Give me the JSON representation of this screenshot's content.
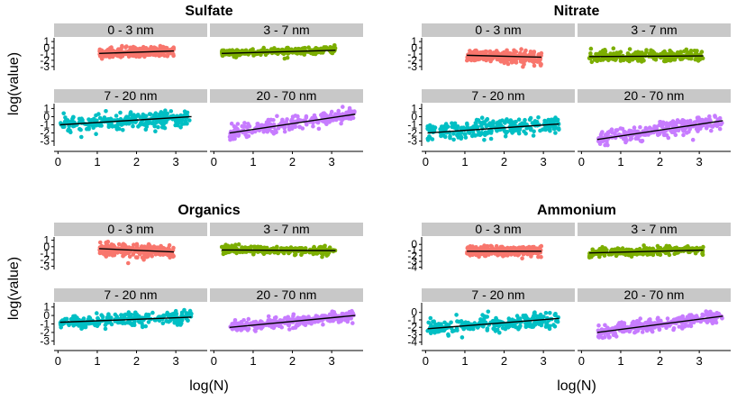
{
  "figure": {
    "ylabel": "log(value)",
    "xlabel": "log(N)",
    "facet_labels": [
      "0 - 3 nm",
      "3 - 7 nm",
      "7 - 20 nm",
      "20 - 70 nm"
    ],
    "facet_colors": [
      "#F8766D",
      "#7CAE00",
      "#00BFC4",
      "#C77CFF"
    ],
    "fit_line_color": "#000000",
    "strip_color": "#C8C8C8"
  },
  "chart_data": [
    {
      "type": "scatter",
      "title": "Sulfate",
      "xticks": [
        0,
        1,
        2,
        3
      ],
      "xlim": [
        -0.1,
        3.8
      ],
      "panels": [
        {
          "facet": "0 - 3 nm",
          "ylim": [
            -3.6,
            1.6
          ],
          "yticks": [
            -3,
            -2,
            -1,
            0,
            1
          ],
          "x_range": [
            1.05,
            2.95
          ],
          "y_center": -0.6,
          "y_spread": 0.75,
          "fit": {
            "x": [
              1.05,
              2.95
            ],
            "y": [
              -0.9,
              -0.5
            ]
          }
        },
        {
          "facet": "3 - 7 nm",
          "ylim": [
            -3.6,
            1.6
          ],
          "yticks": [
            -3,
            -2,
            -1,
            0,
            1
          ],
          "x_range": [
            0.2,
            3.1
          ],
          "y_center": -0.5,
          "y_spread": 0.5,
          "fit": {
            "x": [
              0.2,
              3.1
            ],
            "y": [
              -0.9,
              -0.4
            ]
          }
        },
        {
          "facet": "7 - 20 nm",
          "ylim": [
            -3.6,
            1.6
          ],
          "yticks": [
            -3,
            -2,
            -1,
            0,
            1
          ],
          "x_range": [
            0.05,
            3.4
          ],
          "y_center": -0.6,
          "y_spread": 0.9,
          "fit": {
            "x": [
              0.05,
              3.4
            ],
            "y": [
              -1.0,
              0.0
            ]
          }
        },
        {
          "facet": "20 - 70 nm",
          "ylim": [
            -3.6,
            1.6
          ],
          "yticks": [
            -3,
            -2,
            -1,
            0,
            1
          ],
          "x_range": [
            0.4,
            3.6
          ],
          "y_center": -0.6,
          "y_spread": 0.7,
          "fit": {
            "x": [
              0.4,
              3.6
            ],
            "y": [
              -2.0,
              0.3
            ]
          }
        }
      ]
    },
    {
      "type": "scatter",
      "title": "Nitrate",
      "xticks": [
        0,
        1,
        2,
        3
      ],
      "xlim": [
        -0.1,
        3.8
      ],
      "panels": [
        {
          "facet": "0 - 3 nm",
          "ylim": [
            -3.6,
            1.6
          ],
          "yticks": [
            -3,
            -2,
            -1,
            0,
            1
          ],
          "x_range": [
            1.05,
            2.95
          ],
          "y_center": -1.2,
          "y_spread": 0.9,
          "fit": {
            "x": [
              1.05,
              2.95
            ],
            "y": [
              -1.2,
              -1.5
            ]
          }
        },
        {
          "facet": "3 - 7 nm",
          "ylim": [
            -3.6,
            1.6
          ],
          "yticks": [
            -3,
            -2,
            -1,
            0,
            1
          ],
          "x_range": [
            0.2,
            3.1
          ],
          "y_center": -1.3,
          "y_spread": 0.8,
          "fit": {
            "x": [
              0.2,
              3.1
            ],
            "y": [
              -1.4,
              -1.3
            ]
          }
        },
        {
          "facet": "7 - 20 nm",
          "ylim": [
            -3.6,
            1.6
          ],
          "yticks": [
            -3,
            -2,
            -1,
            0,
            1
          ],
          "x_range": [
            0.05,
            3.4
          ],
          "y_center": -1.6,
          "y_spread": 1.0,
          "fit": {
            "x": [
              0.05,
              3.4
            ],
            "y": [
              -2.0,
              -0.9
            ]
          }
        },
        {
          "facet": "20 - 70 nm",
          "ylim": [
            -3.6,
            1.6
          ],
          "yticks": [
            -3,
            -2,
            -1,
            0,
            1
          ],
          "x_range": [
            0.4,
            3.6
          ],
          "y_center": -1.2,
          "y_spread": 0.9,
          "fit": {
            "x": [
              0.4,
              3.6
            ],
            "y": [
              -2.8,
              -0.5
            ]
          }
        }
      ]
    },
    {
      "type": "scatter",
      "title": "Organics",
      "xticks": [
        0,
        1,
        2,
        3
      ],
      "xlim": [
        -0.1,
        3.8
      ],
      "panels": [
        {
          "facet": "0 - 3 nm",
          "ylim": [
            -3.5,
            1.5
          ],
          "yticks": [
            -3,
            -2,
            -1,
            0,
            1
          ],
          "x_range": [
            1.05,
            2.95
          ],
          "y_center": -0.7,
          "y_spread": 0.9,
          "fit": {
            "x": [
              1.05,
              2.95
            ],
            "y": [
              -0.3,
              -0.8
            ]
          }
        },
        {
          "facet": "3 - 7 nm",
          "ylim": [
            -3.5,
            1.5
          ],
          "yticks": [
            -3,
            -2,
            -1,
            0,
            1
          ],
          "x_range": [
            0.2,
            3.1
          ],
          "y_center": -0.6,
          "y_spread": 0.55,
          "fit": {
            "x": [
              0.2,
              3.1
            ],
            "y": [
              -0.5,
              -0.6
            ]
          }
        },
        {
          "facet": "7 - 20 nm",
          "ylim": [
            -3.5,
            1.5
          ],
          "yticks": [
            -3,
            -2,
            -1,
            0,
            1
          ],
          "x_range": [
            0.05,
            3.4
          ],
          "y_center": -0.6,
          "y_spread": 0.7,
          "fit": {
            "x": [
              0.05,
              3.4
            ],
            "y": [
              -0.8,
              -0.2
            ]
          }
        },
        {
          "facet": "20 - 70 nm",
          "ylim": [
            -3.5,
            1.5
          ],
          "yticks": [
            -3,
            -2,
            -1,
            0,
            1
          ],
          "x_range": [
            0.4,
            3.6
          ],
          "y_center": -0.4,
          "y_spread": 0.6,
          "fit": {
            "x": [
              0.4,
              3.6
            ],
            "y": [
              -1.4,
              0.0
            ]
          }
        }
      ]
    },
    {
      "type": "scatter",
      "title": "Ammonium",
      "xticks": [
        0,
        1,
        2,
        3
      ],
      "xlim": [
        -0.1,
        3.8
      ],
      "panels": [
        {
          "facet": "0 - 3 nm",
          "ylim": [
            -4.4,
            1.3
          ],
          "yticks": [
            -4,
            -3,
            -2,
            -1,
            0
          ],
          "x_range": [
            1.05,
            2.95
          ],
          "y_center": -1.2,
          "y_spread": 0.9,
          "fit": {
            "x": [
              1.05,
              2.95
            ],
            "y": [
              -1.2,
              -1.2
            ]
          }
        },
        {
          "facet": "3 - 7 nm",
          "ylim": [
            -4.4,
            1.3
          ],
          "yticks": [
            -4,
            -3,
            -2,
            -1,
            0
          ],
          "x_range": [
            0.2,
            3.1
          ],
          "y_center": -1.2,
          "y_spread": 0.6,
          "fit": {
            "x": [
              0.2,
              3.1
            ],
            "y": [
              -1.5,
              -1.0
            ]
          }
        },
        {
          "facet": "7 - 20 nm",
          "ylim": [
            -4.4,
            1.3
          ],
          "yticks": [
            -4,
            -3,
            -2,
            -1,
            0
          ],
          "x_range": [
            0.05,
            3.4
          ],
          "y_center": -1.6,
          "y_spread": 0.9,
          "fit": {
            "x": [
              0.05,
              3.4
            ],
            "y": [
              -2.2,
              -0.8
            ]
          }
        },
        {
          "facet": "20 - 70 nm",
          "ylim": [
            -4.4,
            1.3
          ],
          "yticks": [
            -4,
            -3,
            -2,
            -1,
            0
          ],
          "x_range": [
            0.4,
            3.6
          ],
          "y_center": -1.5,
          "y_spread": 0.8,
          "fit": {
            "x": [
              0.4,
              3.6
            ],
            "y": [
              -2.7,
              -0.5
            ]
          }
        }
      ]
    }
  ]
}
